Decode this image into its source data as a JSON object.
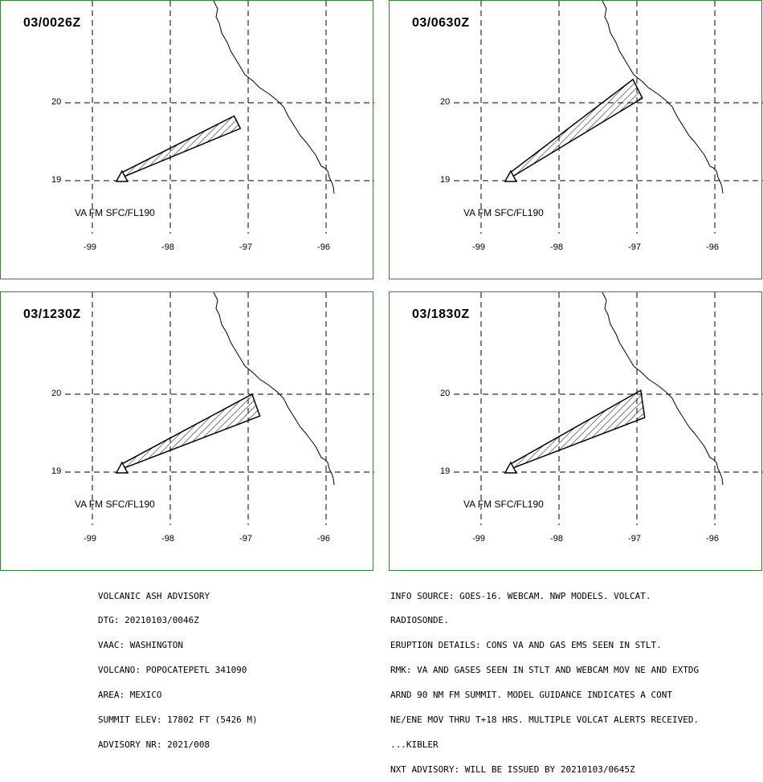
{
  "panels": [
    {
      "title": "03/0026Z",
      "va_label": "VA FM SFC/FL190",
      "ash": [
        [
          -98.63,
          19.1
        ],
        [
          -97.18,
          19.83
        ],
        [
          -97.1,
          19.67
        ],
        [
          -98.6,
          19.05
        ]
      ]
    },
    {
      "title": "03/0630Z",
      "va_label": "VA FM SFC/FL190",
      "ash": [
        [
          -98.63,
          19.1
        ],
        [
          -97.05,
          20.3
        ],
        [
          -96.93,
          20.06
        ],
        [
          -98.6,
          19.05
        ]
      ]
    },
    {
      "title": "03/1230Z",
      "va_label": "VA FM SFC/FL190",
      "ash": [
        [
          -98.63,
          19.1
        ],
        [
          -96.95,
          20.0
        ],
        [
          -96.85,
          19.72
        ],
        [
          -98.6,
          19.05
        ]
      ]
    },
    {
      "title": "03/1830Z",
      "va_label": "VA FM SFC/FL190",
      "ash": [
        [
          -98.63,
          19.1
        ],
        [
          -96.95,
          20.05
        ],
        [
          -96.9,
          19.7
        ],
        [
          -98.6,
          19.05
        ]
      ]
    }
  ],
  "axes": {
    "lat_labels": [
      "20",
      "19"
    ],
    "lon_labels": [
      "-99",
      "-98",
      "-97",
      "-96"
    ],
    "lat_values": [
      20,
      19
    ],
    "lon_values": [
      -99,
      -98,
      -97,
      -96
    ]
  },
  "volcano": {
    "lon": -98.62,
    "lat": 19.02
  },
  "advisory_left": [
    "VOLCANIC ASH ADVISORY",
    "DTG: 20210103/0046Z",
    "VAAC: WASHINGTON",
    "VOLCANO: POPOCATEPETL 341090",
    "AREA: MEXICO",
    "SUMMIT ELEV: 17802 FT (5426 M)",
    "ADVISORY NR: 2021/008"
  ],
  "advisory_right": [
    "INFO SOURCE: GOES-16. WEBCAM. NWP MODELS. VOLCAT.",
    "RADIOSONDE.",
    "ERUPTION DETAILS: CONS VA AND GAS EMS SEEN IN STLT.",
    "RMK: VA AND GASES SEEN IN STLT AND WEBCAM MOV NE AND EXTDG",
    "ARND 90 NM FM SUMMIT. MODEL GUIDANCE INDICATES A CONT",
    "NE/ENE MOV THRU T+18 HRS. MULTIPLE VOLCAT ALERTS RECEIVED.",
    "...KIBLER",
    "NXT ADVISORY: WILL BE ISSUED BY 20210103/0645Z"
  ]
}
